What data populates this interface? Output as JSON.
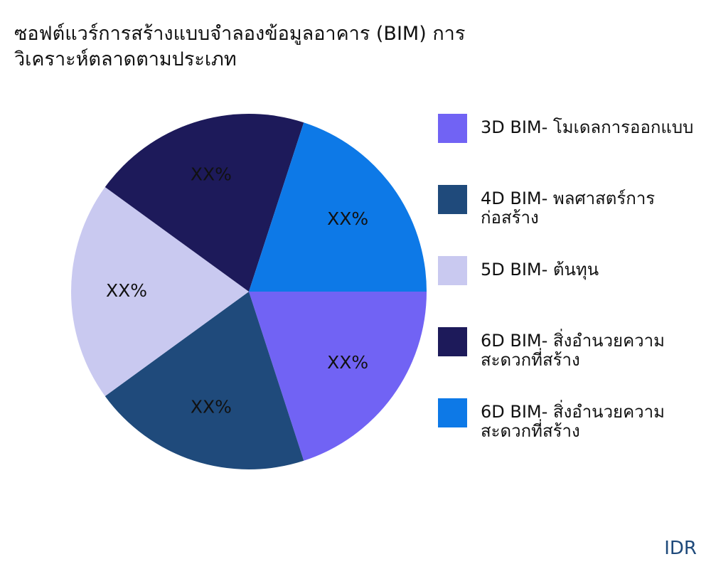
{
  "chart_data": {
    "type": "pie",
    "title": "ซอฟต์แวร์การสร้างแบบจำลองข้อมูลอาคาร (BIM) การวิเคราะห์ตลาดตามประเภท",
    "categories": [
      "3D BIM- โมเดลการออกแบบ",
      "4D BIM- พลศาสตร์การก่อสร้าง",
      "5D BIM- ต้นทุน",
      "6D BIM- สิ่งอำนวยความสะดวกที่สร้าง",
      "6D BIM- สิ่งอำนวยความสะดวกที่สร้าง"
    ],
    "values": [
      20,
      20,
      20,
      20,
      20
    ],
    "value_labels": [
      "XX%",
      "XX%",
      "XX%",
      "XX%",
      "XX%"
    ],
    "colors": [
      "#7163f4",
      "#1f4a7b",
      "#c9c9f0",
      "#1d1a5a",
      "#0d79e7"
    ],
    "legend": "right",
    "source": "IDR"
  }
}
